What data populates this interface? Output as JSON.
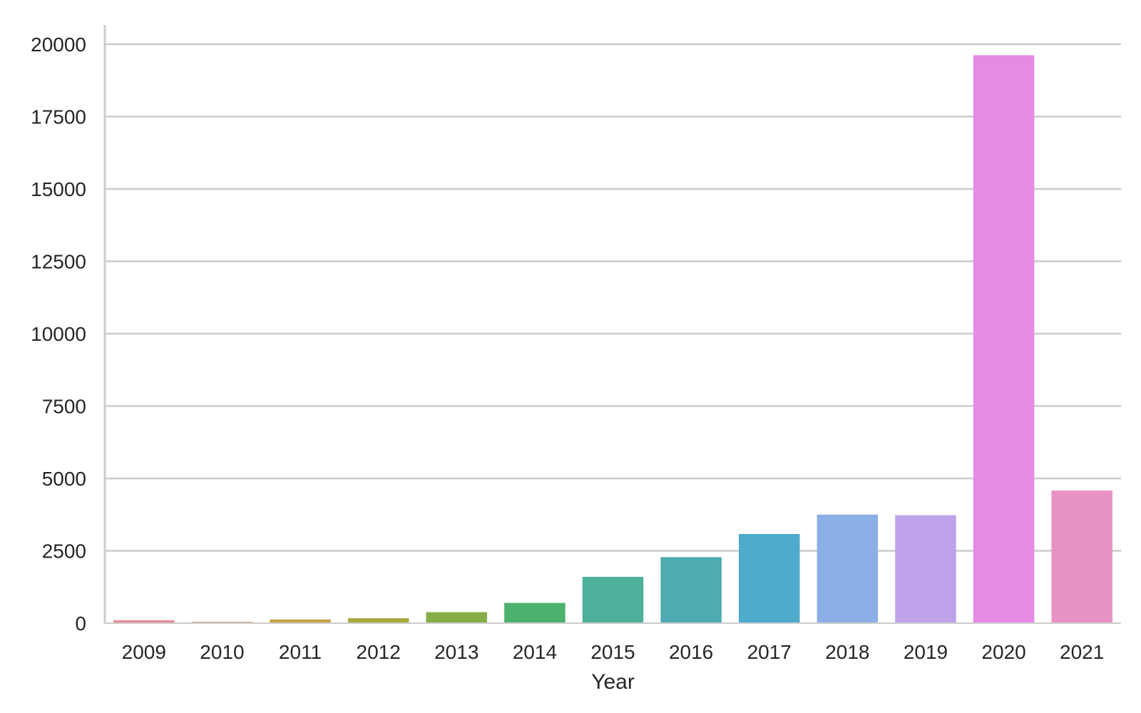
{
  "chart_data": {
    "type": "bar",
    "categories": [
      "2009",
      "2010",
      "2011",
      "2012",
      "2013",
      "2014",
      "2015",
      "2016",
      "2017",
      "2018",
      "2019",
      "2020",
      "2021"
    ],
    "values": [
      100,
      50,
      130,
      170,
      380,
      700,
      1600,
      2280,
      3080,
      3750,
      3730,
      19620,
      4580
    ],
    "colors": [
      "#e88b94",
      "#d9a27c",
      "#c4a244",
      "#a9a93e",
      "#85ad46",
      "#4cb06f",
      "#4cb09a",
      "#4cacb0",
      "#4eabcb",
      "#8caee6",
      "#bea2ea",
      "#e58be6",
      "#e891c4"
    ],
    "title": "",
    "xlabel": "Year",
    "ylabel": "",
    "ylim": [
      0,
      20000
    ],
    "yticks": [
      "0",
      "2500",
      "5000",
      "7500",
      "10000",
      "12500",
      "15000",
      "17500",
      "20000"
    ],
    "grid": "y-axis",
    "legend": "none"
  }
}
